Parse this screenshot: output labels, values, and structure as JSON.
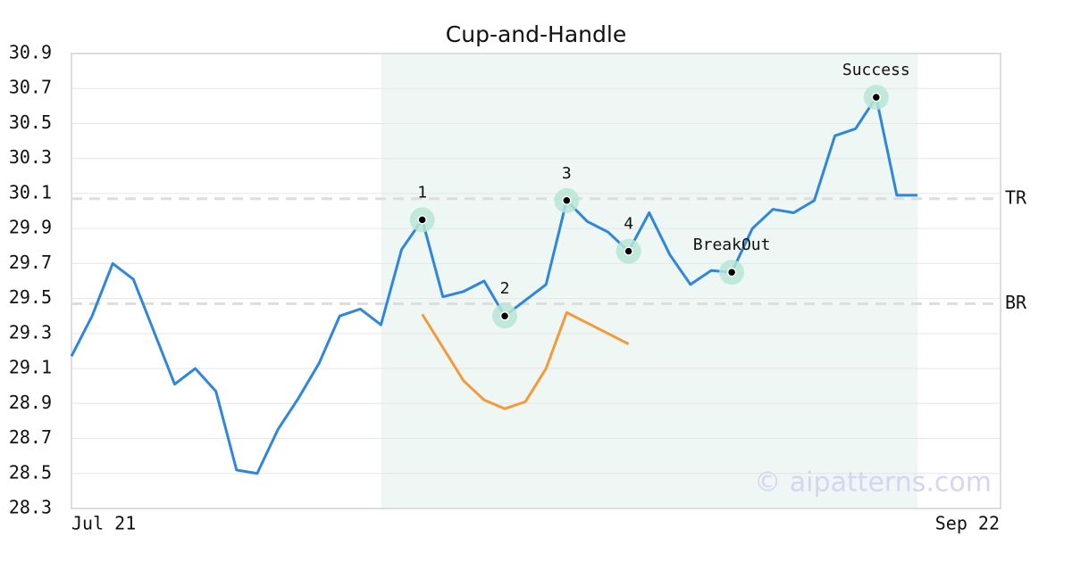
{
  "chart_data": {
    "type": "line",
    "title": "Cup-and-Handle",
    "categories": [
      "Jul 21",
      null,
      null,
      null,
      null,
      null,
      null,
      null,
      null,
      null,
      null,
      null,
      null,
      null,
      null,
      null,
      null,
      null,
      null,
      null,
      null,
      null,
      null,
      null,
      null,
      null,
      null,
      null,
      null,
      null,
      null,
      null,
      null,
      null,
      null,
      null,
      null,
      null,
      null,
      null,
      null,
      "Sep 22"
    ],
    "series": [
      {
        "color": "#2e86de",
        "values": [
          29.17,
          29.4,
          29.7,
          29.61,
          29.31,
          29.01,
          29.1,
          28.97,
          28.52,
          28.5,
          28.75,
          28.93,
          29.13,
          29.4,
          29.44,
          29.35,
          29.78,
          29.95,
          29.51,
          29.54,
          29.6,
          29.4,
          29.49,
          29.58,
          30.06,
          29.94,
          29.88,
          29.77,
          29.99,
          29.75,
          29.58,
          29.66,
          29.65,
          29.9,
          30.01,
          29.99,
          30.06,
          30.43,
          30.47,
          30.65,
          30.09,
          30.09
        ]
      },
      {
        "color": "#f59a3a",
        "values": [
          null,
          null,
          null,
          null,
          null,
          null,
          null,
          null,
          null,
          null,
          null,
          null,
          null,
          null,
          null,
          null,
          null,
          29.41,
          29.22,
          29.03,
          28.92,
          28.87,
          28.91,
          29.1,
          29.42,
          29.36,
          29.3,
          29.24,
          null,
          null,
          null,
          null,
          null,
          null,
          null,
          null,
          null,
          null,
          null,
          null,
          null,
          null
        ]
      }
    ],
    "ylim": [
      28.3,
      30.9
    ],
    "yticks": [
      28.3,
      28.5,
      28.7,
      28.9,
      29.1,
      29.3,
      29.5,
      29.7,
      29.9,
      30.1,
      30.3,
      30.5,
      30.7,
      30.9
    ],
    "grid": true,
    "highlight": [
      15,
      41
    ],
    "highlight_color": "#eef7f3",
    "levels": [
      {
        "label": "TR",
        "value": 30.07
      },
      {
        "label": "BR",
        "value": 29.47
      }
    ],
    "points": [
      {
        "index": 17,
        "label": "1"
      },
      {
        "index": 21,
        "label": "2"
      },
      {
        "index": 24,
        "label": "3"
      },
      {
        "index": 27,
        "label": "4"
      },
      {
        "index": 32,
        "label": "BreakOut"
      },
      {
        "index": 39,
        "label": "Success"
      }
    ],
    "watermark": "© aipatterns.com"
  }
}
